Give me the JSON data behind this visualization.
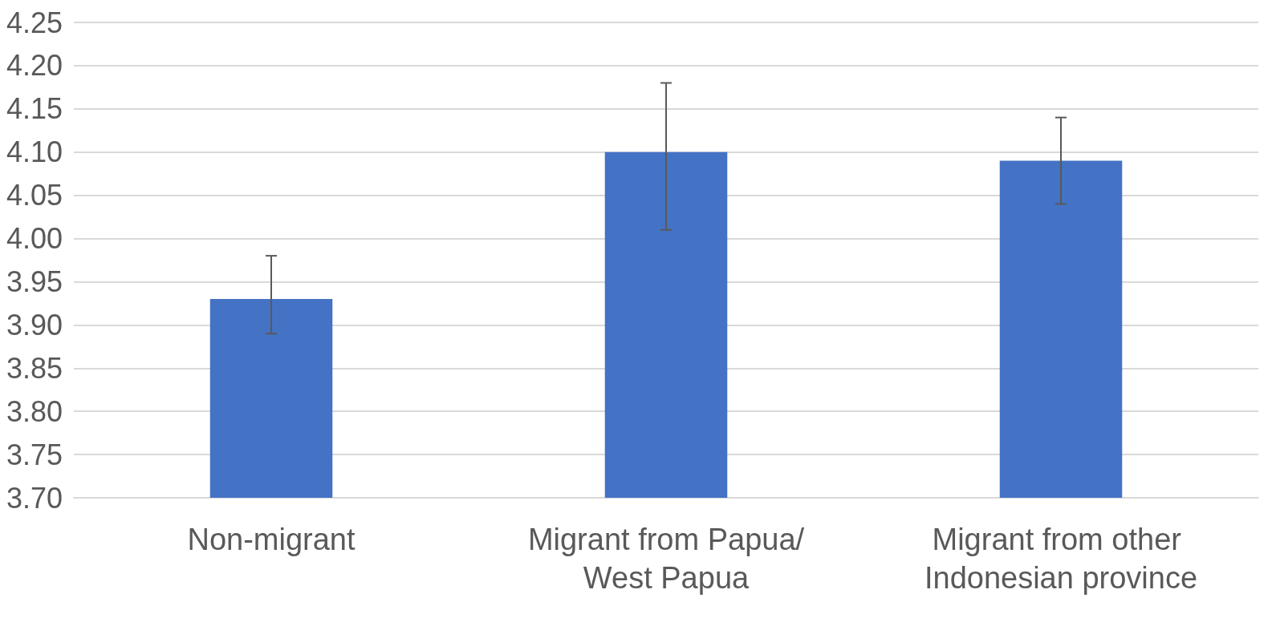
{
  "chart_data": {
    "type": "bar",
    "categories": [
      "Non-migrant",
      "Migrant from Papua/West Papua",
      "Migrant from other Indonesian province"
    ],
    "values": [
      3.93,
      4.1,
      4.09
    ],
    "errors": [
      [
        3.89,
        3.98
      ],
      [
        4.01,
        4.18
      ],
      [
        4.04,
        4.14
      ]
    ],
    "color": "#4472c4",
    "ylim": [
      3.7,
      4.25
    ],
    "yticks": [
      {
        "value": 3.7,
        "label": "3.70"
      },
      {
        "value": 3.75,
        "label": "3.75"
      },
      {
        "value": 3.8,
        "label": "3.80"
      },
      {
        "value": 3.85,
        "label": "3.85"
      },
      {
        "value": 3.9,
        "label": "3.90"
      },
      {
        "value": 3.95,
        "label": "3.95"
      },
      {
        "value": 4.0,
        "label": "4.00"
      },
      {
        "value": 4.05,
        "label": "4.05"
      },
      {
        "value": 4.1,
        "label": "4.10"
      },
      {
        "value": 4.15,
        "label": "4.15"
      },
      {
        "value": 4.2,
        "label": "4.20"
      },
      {
        "value": 4.25,
        "label": "4.25"
      }
    ],
    "grid": "y"
  }
}
